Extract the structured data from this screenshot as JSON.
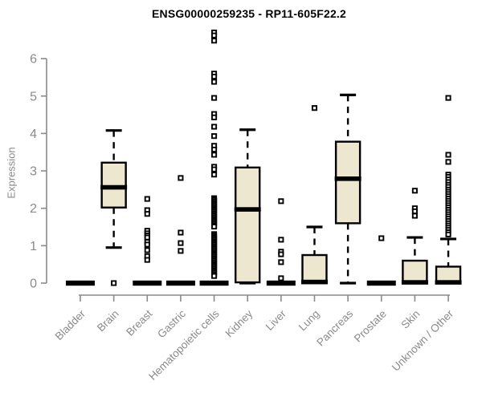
{
  "chart_data": {
    "type": "boxplot",
    "title": "ENSG00000259235 - RP11-605F22.2",
    "xlabel": "",
    "ylabel": "Expression",
    "yticks": [
      0,
      1,
      2,
      3,
      4,
      5,
      6
    ],
    "ylim": [
      0,
      6.8
    ],
    "grid": false,
    "legend": "none",
    "categories": [
      "Bladder",
      "Brain",
      "Breast",
      "Gastric",
      "Hematopoietic cells",
      "Kidney",
      "Liver",
      "Lung",
      "Pancreas",
      "Prostate",
      "Skin",
      "Unknown / Other"
    ],
    "boxes": [
      {
        "category": "Bladder",
        "flat": true,
        "q1": 0,
        "median": 0,
        "q3": 0,
        "whisker_low": 0,
        "whisker_high": 0,
        "outliers": []
      },
      {
        "category": "Brain",
        "flat": false,
        "q1": 2.02,
        "median": 2.56,
        "q3": 3.22,
        "whisker_low": 0.95,
        "whisker_high": 4.08,
        "outliers": [
          0.0
        ]
      },
      {
        "category": "Breast",
        "flat": true,
        "q1": 0,
        "median": 0,
        "q3": 0,
        "whisker_low": 0,
        "whisker_high": 0,
        "outliers": [
          2.25,
          1.95,
          1.85,
          1.4,
          1.33,
          1.27,
          1.22,
          1.1,
          1.03,
          0.88,
          0.72,
          0.62
        ]
      },
      {
        "category": "Gastric",
        "flat": true,
        "q1": 0,
        "median": 0,
        "q3": 0,
        "whisker_low": 0,
        "whisker_high": 0,
        "outliers": [
          2.81,
          1.35,
          1.07,
          0.86
        ]
      },
      {
        "category": "Hematopoietic cells",
        "flat": true,
        "q1": 0,
        "median": 0,
        "q3": 0,
        "whisker_low": 0,
        "whisker_high": 0,
        "outliers": [
          6.7,
          6.62,
          6.48,
          5.6,
          5.52,
          5.38,
          4.95,
          4.52,
          4.43,
          4.18,
          3.93,
          3.67,
          3.57,
          3.43,
          3.11,
          3.04,
          2.9,
          2.27,
          2.23,
          2.19,
          2.15,
          2.11,
          2.07,
          2.03,
          1.99,
          1.95,
          1.91,
          1.87,
          1.83,
          1.79,
          1.75,
          1.71,
          1.67,
          1.63,
          1.59,
          1.55,
          1.51,
          1.31,
          1.27,
          1.23,
          1.19,
          1.15,
          1.11,
          1.07,
          1.03,
          0.99,
          0.95,
          0.91,
          0.87,
          0.83,
          0.79,
          0.75,
          0.71,
          0.67,
          0.63,
          0.59,
          0.55,
          0.51,
          0.47,
          0.43,
          0.39,
          0.35,
          0.31,
          0.27,
          0.23,
          0.19
        ]
      },
      {
        "category": "Kidney",
        "flat": false,
        "q1": 0.02,
        "median": 1.97,
        "q3": 3.09,
        "whisker_low": 0.0,
        "whisker_high": 4.1,
        "outliers": []
      },
      {
        "category": "Liver",
        "flat": true,
        "q1": 0,
        "median": 0,
        "q3": 0,
        "whisker_low": 0,
        "whisker_high": 0,
        "outliers": [
          2.19,
          1.16,
          0.84,
          0.77,
          0.56,
          0.13
        ]
      },
      {
        "category": "Lung",
        "flat": false,
        "q1": 0.0,
        "median": 0.03,
        "q3": 0.75,
        "whisker_low": 0.0,
        "whisker_high": 1.5,
        "outliers": [
          4.68
        ]
      },
      {
        "category": "Pancreas",
        "flat": false,
        "q1": 1.6,
        "median": 2.79,
        "q3": 3.78,
        "whisker_low": 0.0,
        "whisker_high": 5.03,
        "outliers": []
      },
      {
        "category": "Prostate",
        "flat": true,
        "q1": 0,
        "median": 0,
        "q3": 0,
        "whisker_low": 0,
        "whisker_high": 0,
        "outliers": [
          1.2
        ]
      },
      {
        "category": "Skin",
        "flat": false,
        "q1": 0.0,
        "median": 0.02,
        "q3": 0.6,
        "whisker_low": 0.0,
        "whisker_high": 1.22,
        "outliers": [
          2.47,
          2.0,
          1.92,
          1.8
        ]
      },
      {
        "category": "Unknown / Other",
        "flat": false,
        "q1": 0.0,
        "median": 0.02,
        "q3": 0.44,
        "whisker_low": 0.0,
        "whisker_high": 1.18,
        "outliers": [
          4.95,
          3.43,
          3.24,
          2.9,
          2.84,
          2.77,
          2.7,
          2.63,
          2.57,
          2.5,
          2.44,
          2.38,
          2.32,
          2.26,
          2.2,
          2.14,
          2.08,
          2.02,
          1.96,
          1.9,
          1.84,
          1.78,
          1.72,
          1.66,
          1.6,
          1.54,
          1.48,
          1.42,
          1.36,
          1.3
        ]
      }
    ],
    "colors": {
      "box_fill": "#ede7d0",
      "box_stroke": "#000000",
      "median": "#000000",
      "outlier_stroke": "#000000",
      "axis": "#8a8a8a",
      "tick_label": "#8a8a8a",
      "title": "#000000",
      "background": "#ffffff"
    }
  }
}
